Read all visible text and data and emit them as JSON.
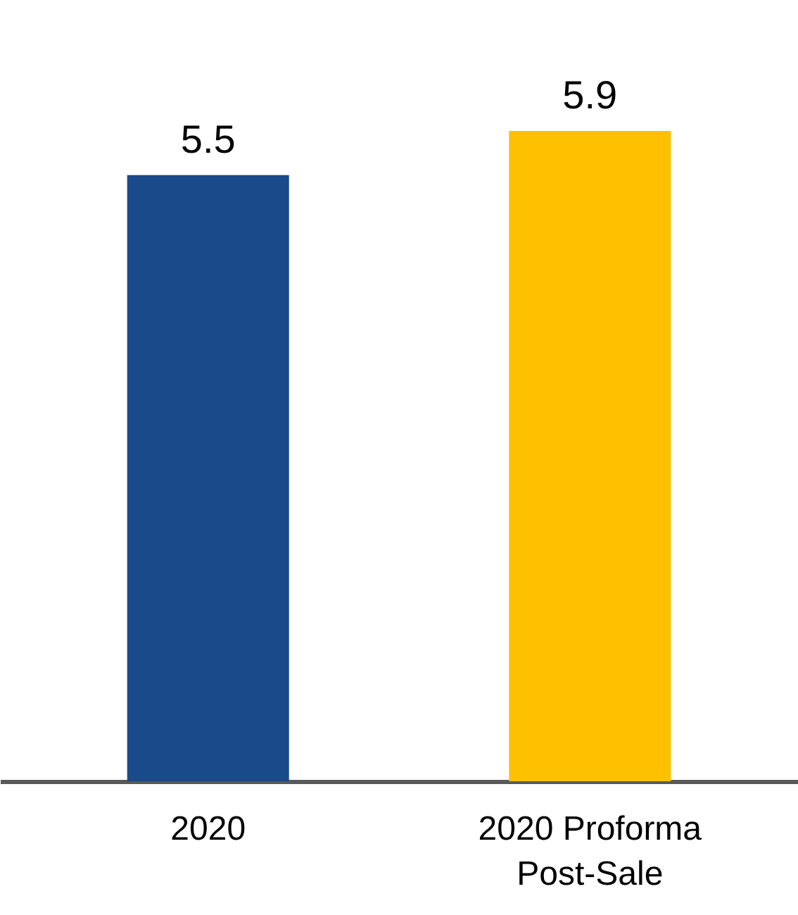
{
  "chart_data": {
    "type": "bar",
    "categories": [
      "2020",
      "2020 Proforma Post-Sale"
    ],
    "values": [
      5.5,
      5.9
    ],
    "colors": [
      "#1a4a8a",
      "#ffc000"
    ],
    "data_labels": true
  }
}
